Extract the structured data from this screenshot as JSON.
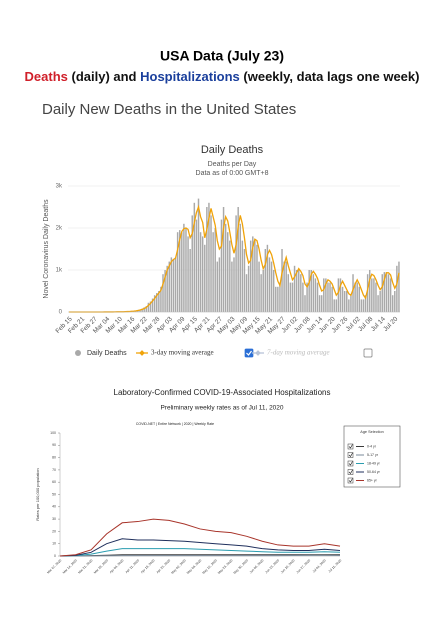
{
  "header": {
    "title": "USA Data (July 23)",
    "subtitle_parts": [
      {
        "text": "Deaths",
        "color": "#d0202a"
      },
      {
        "text": " (daily) and ",
        "color": "#111111"
      },
      {
        "text": "Hospitalizations",
        "color": "#1a3f9c"
      },
      {
        "text": " (weekly, data lags one week)",
        "color": "#111111"
      }
    ],
    "section": "Daily New Deaths in the United States"
  },
  "chart_data": [
    {
      "type": "bar",
      "title": "Daily Deaths",
      "subtitle": "Deaths per Day",
      "note": "Data as of 0:00 GMT+8",
      "y_label": "Novel Coronavirus Daily Deaths",
      "categories": [
        "Feb 15",
        null,
        null,
        null,
        null,
        null,
        "Feb 21",
        null,
        null,
        null,
        null,
        null,
        "Feb 27",
        null,
        null,
        null,
        null,
        null,
        "Mar 04",
        null,
        null,
        null,
        null,
        null,
        "Mar 10",
        null,
        null,
        null,
        null,
        null,
        "Mar 16",
        null,
        null,
        null,
        null,
        null,
        "Mar 22",
        null,
        null,
        null,
        null,
        null,
        "Mar 28",
        null,
        null,
        null,
        null,
        null,
        "Apr 03",
        null,
        null,
        null,
        null,
        null,
        "Apr 09",
        null,
        null,
        null,
        null,
        null,
        "Apr 15",
        null,
        null,
        null,
        null,
        null,
        "Apr 21",
        null,
        null,
        null,
        null,
        null,
        "Apr 27",
        null,
        null,
        null,
        null,
        null,
        "May 03",
        null,
        null,
        null,
        null,
        null,
        "May 09",
        null,
        null,
        null,
        null,
        null,
        "May 15",
        null,
        null,
        null,
        null,
        null,
        "May 21",
        null,
        null,
        null,
        null,
        null,
        "May 27",
        null,
        null,
        null,
        null,
        null,
        "Jun 02",
        null,
        null,
        null,
        null,
        null,
        "Jun 08",
        null,
        null,
        null,
        null,
        null,
        "Jun 14",
        null,
        null,
        null,
        null,
        null,
        "Jun 20",
        null,
        null,
        null,
        null,
        null,
        "Jun 26",
        null,
        null,
        null,
        null,
        null,
        "Jul 02",
        null,
        null,
        null,
        null,
        null,
        "Jul 08",
        null,
        null,
        null,
        null,
        null,
        "Jul 14",
        null,
        null,
        null,
        null,
        null,
        "Jul 20",
        null,
        null
      ],
      "series": [
        {
          "name": "Daily Deaths",
          "type": "bar",
          "color": "#a9a9a9",
          "values": [
            0,
            0,
            0,
            0,
            0,
            0,
            0,
            0,
            0,
            0,
            0,
            0,
            0,
            0,
            0,
            1,
            0,
            1,
            2,
            2,
            1,
            3,
            4,
            4,
            3,
            5,
            8,
            10,
            12,
            15,
            20,
            25,
            35,
            50,
            60,
            80,
            110,
            140,
            220,
            250,
            320,
            400,
            450,
            500,
            600,
            900,
            1000,
            1100,
            1200,
            1300,
            1250,
            1300,
            1900,
            1950,
            1900,
            2100,
            2000,
            1800,
            1500,
            2300,
            2600,
            2200,
            2700,
            1900,
            1800,
            1600,
            2500,
            2600,
            2300,
            1900,
            2000,
            1200,
            1300,
            2200,
            2500,
            2100,
            1900,
            1700,
            1200,
            1300,
            2300,
            2500,
            2100,
            1700,
            1500,
            900,
            1100,
            1700,
            1800,
            1700,
            1600,
            1200,
            900,
            1000,
            1500,
            1600,
            1300,
            1200,
            1000,
            600,
            600,
            700,
            1500,
            1200,
            1200,
            900,
            700,
            700,
            1100,
            1000,
            1000,
            900,
            700,
            400,
            700,
            1000,
            1000,
            900,
            800,
            700,
            400,
            400,
            800,
            800,
            700,
            700,
            600,
            300,
            300,
            800,
            800,
            600,
            500,
            500,
            300,
            400,
            900,
            700,
            700,
            600,
            300,
            300,
            400,
            900,
            1000,
            800,
            800,
            700,
            400,
            500,
            900,
            950,
            950,
            900,
            800,
            400,
            500,
            1100,
            1200
          ]
        },
        {
          "name": "3-day moving average",
          "type": "line",
          "color": "#f0a30a",
          "values": [
            0,
            0,
            0,
            0,
            0,
            0,
            0,
            0,
            0,
            0,
            0,
            0,
            0,
            0,
            0,
            0,
            0,
            1,
            1,
            2,
            2,
            2,
            3,
            4,
            4,
            4,
            5,
            8,
            10,
            12,
            16,
            20,
            27,
            37,
            48,
            63,
            83,
            110,
            157,
            203,
            263,
            323,
            390,
            450,
            517,
            667,
            833,
            1000,
            1100,
            1200,
            1250,
            1283,
            1483,
            1717,
            1917,
            1983,
            2000,
            1967,
            1767,
            1867,
            2133,
            2367,
            2500,
            2267,
            2133,
            1767,
            1967,
            2233,
            2467,
            2267,
            2067,
            1700,
            1500,
            1567,
            2000,
            2267,
            2167,
            1900,
            1600,
            1400,
            1600,
            2033,
            2300,
            2100,
            1767,
            1367,
            1167,
            1233,
            1533,
            1733,
            1700,
            1500,
            1233,
            1033,
            1133,
            1367,
            1467,
            1367,
            1167,
            933,
            733,
            633,
            933,
            1133,
            1300,
            1100,
            933,
            767,
            833,
            933,
            1033,
            967,
            867,
            667,
            600,
            700,
            900,
            967,
            900,
            800,
            633,
            500,
            533,
            667,
            767,
            733,
            667,
            533,
            400,
            467,
            633,
            733,
            633,
            533,
            433,
            400,
            533,
            667,
            767,
            667,
            533,
            400,
            333,
            533,
            767,
            900,
            867,
            767,
            633,
            533,
            600,
            783,
            933,
            933,
            883,
            700,
            567,
            667,
            933
          ]
        },
        {
          "name": "7-day moving average",
          "type": "line",
          "color": "#b8c4d8",
          "visible": false
        }
      ],
      "ylim": [
        0,
        3000
      ],
      "yticks": [
        0,
        {
          "value": 1000,
          "label": "1k"
        },
        {
          "value": 2000,
          "label": "2k"
        },
        {
          "value": 3000,
          "label": "3k"
        }
      ],
      "grid": true
    },
    {
      "type": "line",
      "title": "Laboratory-Confirmed COVID-19-Associated Hospitalizations",
      "subtitle": "Preliminary weekly rates as of Jul 11, 2020",
      "note": "COVID-NET | Entire Network | 2020 | Weekly Rate",
      "y_label": "Rates per 100,000 population",
      "legend_title": "Age Selection",
      "categories": [
        "Mar 07, 2020",
        "Mar 14, 2020",
        "Mar 21, 2020",
        "Mar 28, 2020",
        "Apr 04, 2020",
        "Apr 11, 2020",
        "Apr 18, 2020",
        "Apr 25, 2020",
        "May 02, 2020",
        "May 09, 2020",
        "May 16, 2020",
        "May 23, 2020",
        "May 30, 2020",
        "Jun 06, 2020",
        "Jun 13, 2020",
        "Jun 20, 2020",
        "Jun 27, 2020",
        "Jul 04, 2020",
        "Jul 11, 2020"
      ],
      "series": [
        {
          "name": "0-4 yr",
          "color": "#3b3b3b",
          "values": [
            0,
            0,
            0.3,
            0.6,
            1,
            1,
            1,
            1,
            1,
            1,
            1,
            1,
            1,
            1,
            1,
            1,
            1,
            1,
            1
          ]
        },
        {
          "name": "5-17 yr",
          "color": "#7a8a99",
          "values": [
            0,
            0,
            0.1,
            0.2,
            0.3,
            0.3,
            0.3,
            0.3,
            0.3,
            0.3,
            0.3,
            0.3,
            0.3,
            0.3,
            0.3,
            0.4,
            0.5,
            0.5,
            0.4
          ]
        },
        {
          "name": "18-49 yr",
          "color": "#2a9db0",
          "values": [
            0,
            0.3,
            1.5,
            4,
            6,
            6,
            6,
            6,
            6,
            5.5,
            5,
            4.5,
            4,
            3.5,
            3,
            3,
            3,
            3.5,
            3
          ]
        },
        {
          "name": "50-64 yr",
          "color": "#1f2f5c",
          "values": [
            0,
            0.5,
            3,
            10,
            14,
            13,
            13,
            12.5,
            12,
            11,
            10,
            9,
            8,
            6,
            5,
            4.5,
            4.5,
            5.5,
            4.5
          ]
        },
        {
          "name": "65+ yr",
          "color": "#a8342a",
          "values": [
            0,
            1,
            5,
            18,
            27,
            28,
            30,
            29,
            26,
            22,
            20,
            19,
            16,
            12,
            9,
            8,
            8,
            10,
            8
          ]
        }
      ],
      "ylim": [
        0,
        100
      ],
      "yticks": [
        0,
        10,
        20,
        30,
        40,
        50,
        60,
        70,
        80,
        90,
        100
      ],
      "grid": false
    }
  ]
}
